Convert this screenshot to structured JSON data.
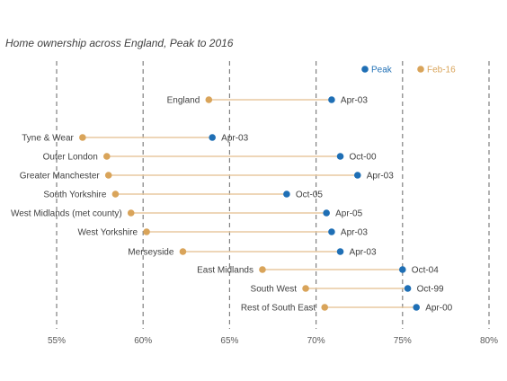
{
  "title": "Home ownership across England, Peak to 2016",
  "colors": {
    "peak": "#1f6fb5",
    "feb16": "#d9a45a",
    "line": "#e8c9a0",
    "grid": "#808080"
  },
  "chart_data": {
    "type": "dumbbell",
    "title": "Home ownership across England, Peak to 2016",
    "xlim": [
      55,
      80
    ],
    "x_ticks": [
      "55%",
      "60%",
      "65%",
      "70%",
      "75%",
      "80%"
    ],
    "x_tick_values": [
      55,
      60,
      65,
      70,
      75,
      80
    ],
    "grid": true,
    "legend": {
      "placement": "top-right",
      "entries": [
        "Peak",
        "Feb-16"
      ]
    },
    "series": [
      {
        "name": "Peak",
        "color": "#1f6fb5"
      },
      {
        "name": "Feb-16",
        "color": "#d9a45a"
      }
    ],
    "rows": [
      {
        "category": "England",
        "feb16": 63.8,
        "peak": 70.9,
        "peak_label": "Apr-03"
      },
      {
        "category": "Tyne & Wear",
        "feb16": 56.5,
        "peak": 64.0,
        "peak_label": "Apr-03"
      },
      {
        "category": "Outer London",
        "feb16": 57.9,
        "peak": 71.4,
        "peak_label": "Oct-00"
      },
      {
        "category": "Greater Manchester",
        "feb16": 58.0,
        "peak": 72.4,
        "peak_label": "Apr-03"
      },
      {
        "category": "South Yorkshire",
        "feb16": 58.4,
        "peak": 68.3,
        "peak_label": "Oct-05"
      },
      {
        "category": "West Midlands (met county)",
        "feb16": 59.3,
        "peak": 70.6,
        "peak_label": "Apr-05"
      },
      {
        "category": "West Yorkshire",
        "feb16": 60.2,
        "peak": 70.9,
        "peak_label": "Apr-03"
      },
      {
        "category": "Merseyside",
        "feb16": 62.3,
        "peak": 71.4,
        "peak_label": "Apr-03"
      },
      {
        "category": "East Midlands",
        "feb16": 66.9,
        "peak": 75.0,
        "peak_label": "Oct-04"
      },
      {
        "category": "South West",
        "feb16": 69.4,
        "peak": 75.3,
        "peak_label": "Oct-99"
      },
      {
        "category": "Rest of South East",
        "feb16": 70.5,
        "peak": 75.8,
        "peak_label": "Apr-00"
      }
    ]
  }
}
